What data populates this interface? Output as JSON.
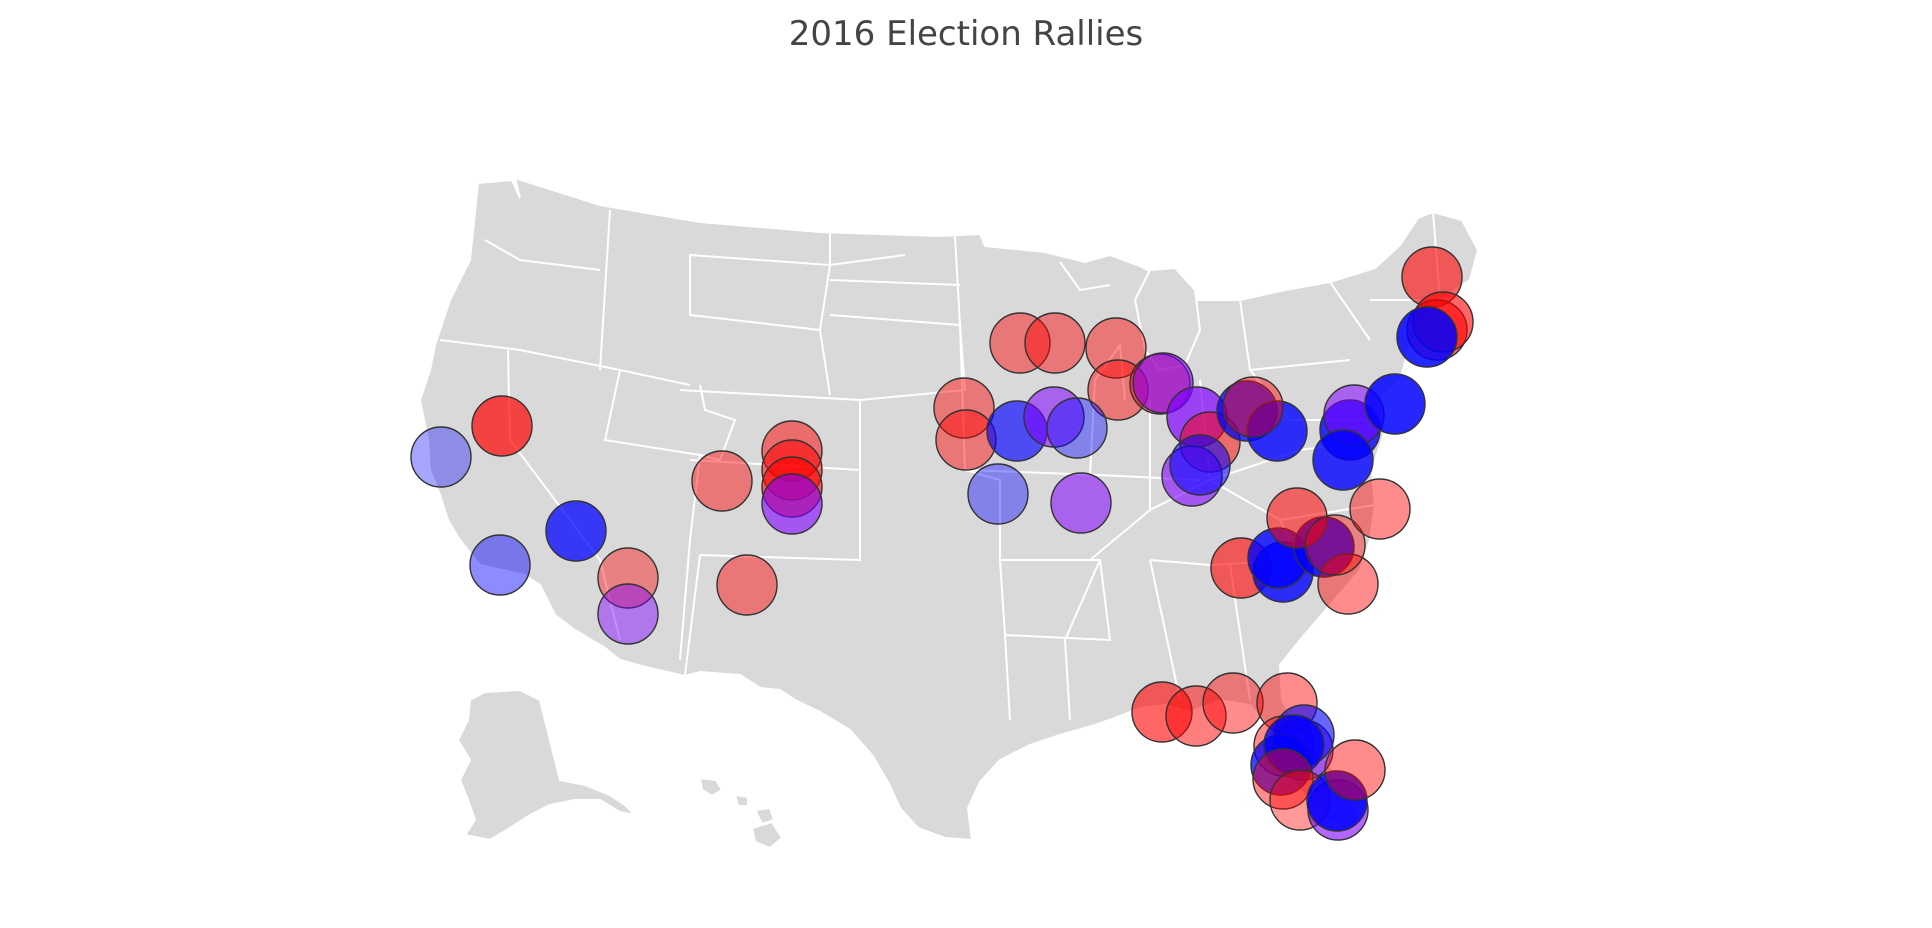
{
  "title": "2016 Election Rallies",
  "colors": {
    "background": "#ffffff",
    "land": "#d9d9d9",
    "borders": "#ffffff",
    "rally_red": "#ff0000",
    "rally_blue": "#0000ff",
    "rally_purple": "#7f00ff"
  },
  "rallies": [
    {
      "color": "#ff0000",
      "opacity": 0.7
    },
    {
      "color": "#0000ff",
      "opacity": 0.35
    },
    {
      "color": "#0000ff",
      "opacity": 0.45
    },
    {
      "color": "#0000ff",
      "opacity": 0.75
    },
    {
      "color": "#ff0000",
      "opacity": 0.4
    },
    {
      "color": "#7f00ff",
      "opacity": 0.45
    },
    {
      "color": "#ff0000",
      "opacity": 0.45
    },
    {
      "color": "#ff0000",
      "opacity": 0.45
    },
    {
      "color": "#ff0000",
      "opacity": 0.5
    },
    {
      "color": "#ff0000",
      "opacity": 0.55
    },
    {
      "color": "#ff0000",
      "opacity": 0.6
    },
    {
      "color": "#7f00ff",
      "opacity": 0.6
    },
    {
      "color": "#ff0000",
      "opacity": 0.45
    },
    {
      "color": "#ff0000",
      "opacity": 0.45
    },
    {
      "color": "#0000ff",
      "opacity": 0.4
    },
    {
      "color": "#ff0000",
      "opacity": 0.45
    },
    {
      "color": "#ff0000",
      "opacity": 0.45
    },
    {
      "color": "#ff0000",
      "opacity": 0.45
    },
    {
      "color": "#ff0000",
      "opacity": 0.45
    },
    {
      "color": "#0000ff",
      "opacity": 0.65
    },
    {
      "color": "#7f00ff",
      "opacity": 0.55
    },
    {
      "color": "#0000ff",
      "opacity": 0.4
    },
    {
      "color": "#7f00ff",
      "opacity": 0.55
    },
    {
      "color": "#ff0000",
      "opacity": 0.45
    },
    {
      "color": "#7f00ff",
      "opacity": 0.6
    },
    {
      "color": "#7f00ff",
      "opacity": 0.7
    },
    {
      "color": "#ff0000",
      "opacity": 0.5
    },
    {
      "color": "#0000ff",
      "opacity": 0.75
    },
    {
      "color": "#0000ff",
      "opacity": 0.8
    },
    {
      "color": "#7f00ff",
      "opacity": 0.6
    },
    {
      "color": "#0000ff",
      "opacity": 0.55
    },
    {
      "color": "#ff0000",
      "opacity": 0.45
    },
    {
      "color": "#ff0000",
      "opacity": 0.6
    },
    {
      "color": "#0000ff",
      "opacity": 0.8
    },
    {
      "color": "#0000ff",
      "opacity": 0.8
    },
    {
      "color": "#0000ff",
      "opacity": 0.85
    },
    {
      "color": "#ff0000",
      "opacity": 0.55
    },
    {
      "color": "#ff0000",
      "opacity": 0.45
    },
    {
      "color": "#ff0000",
      "opacity": 0.4
    },
    {
      "color": "#0000ff",
      "opacity": 0.8
    },
    {
      "color": "#7f00ff",
      "opacity": 0.55
    },
    {
      "color": "#ff0000",
      "opacity": 0.45
    },
    {
      "color": "#ff0000",
      "opacity": 0.6
    },
    {
      "color": "#ff0000",
      "opacity": 0.6
    },
    {
      "color": "#0000ff",
      "opacity": 0.8
    },
    {
      "color": "#0000ff",
      "opacity": 0.85
    },
    {
      "color": "#ff0000",
      "opacity": 0.6
    },
    {
      "color": "#0000ff",
      "opacity": 0.85
    },
    {
      "color": "#ff0000",
      "opacity": 0.6
    },
    {
      "color": "#ff0000",
      "opacity": 0.5
    },
    {
      "color": "#ff0000",
      "opacity": 0.45
    },
    {
      "color": "#ff0000",
      "opacity": 0.45
    },
    {
      "color": "#ff0000",
      "opacity": 0.45
    },
    {
      "color": "#7f00ff",
      "opacity": 0.6
    },
    {
      "color": "#0000ff",
      "opacity": 0.6
    },
    {
      "color": "#0000ff",
      "opacity": 0.75
    },
    {
      "color": "#0000ff",
      "opacity": 0.8
    },
    {
      "color": "#ff0000",
      "opacity": 0.45
    },
    {
      "color": "#ff0000",
      "opacity": 0.4
    },
    {
      "color": "#7f00ff",
      "opacity": 0.6
    },
    {
      "color": "#0000ff",
      "opacity": 0.85
    },
    {
      "color": "#ff0000",
      "opacity": 0.45
    }
  ]
}
